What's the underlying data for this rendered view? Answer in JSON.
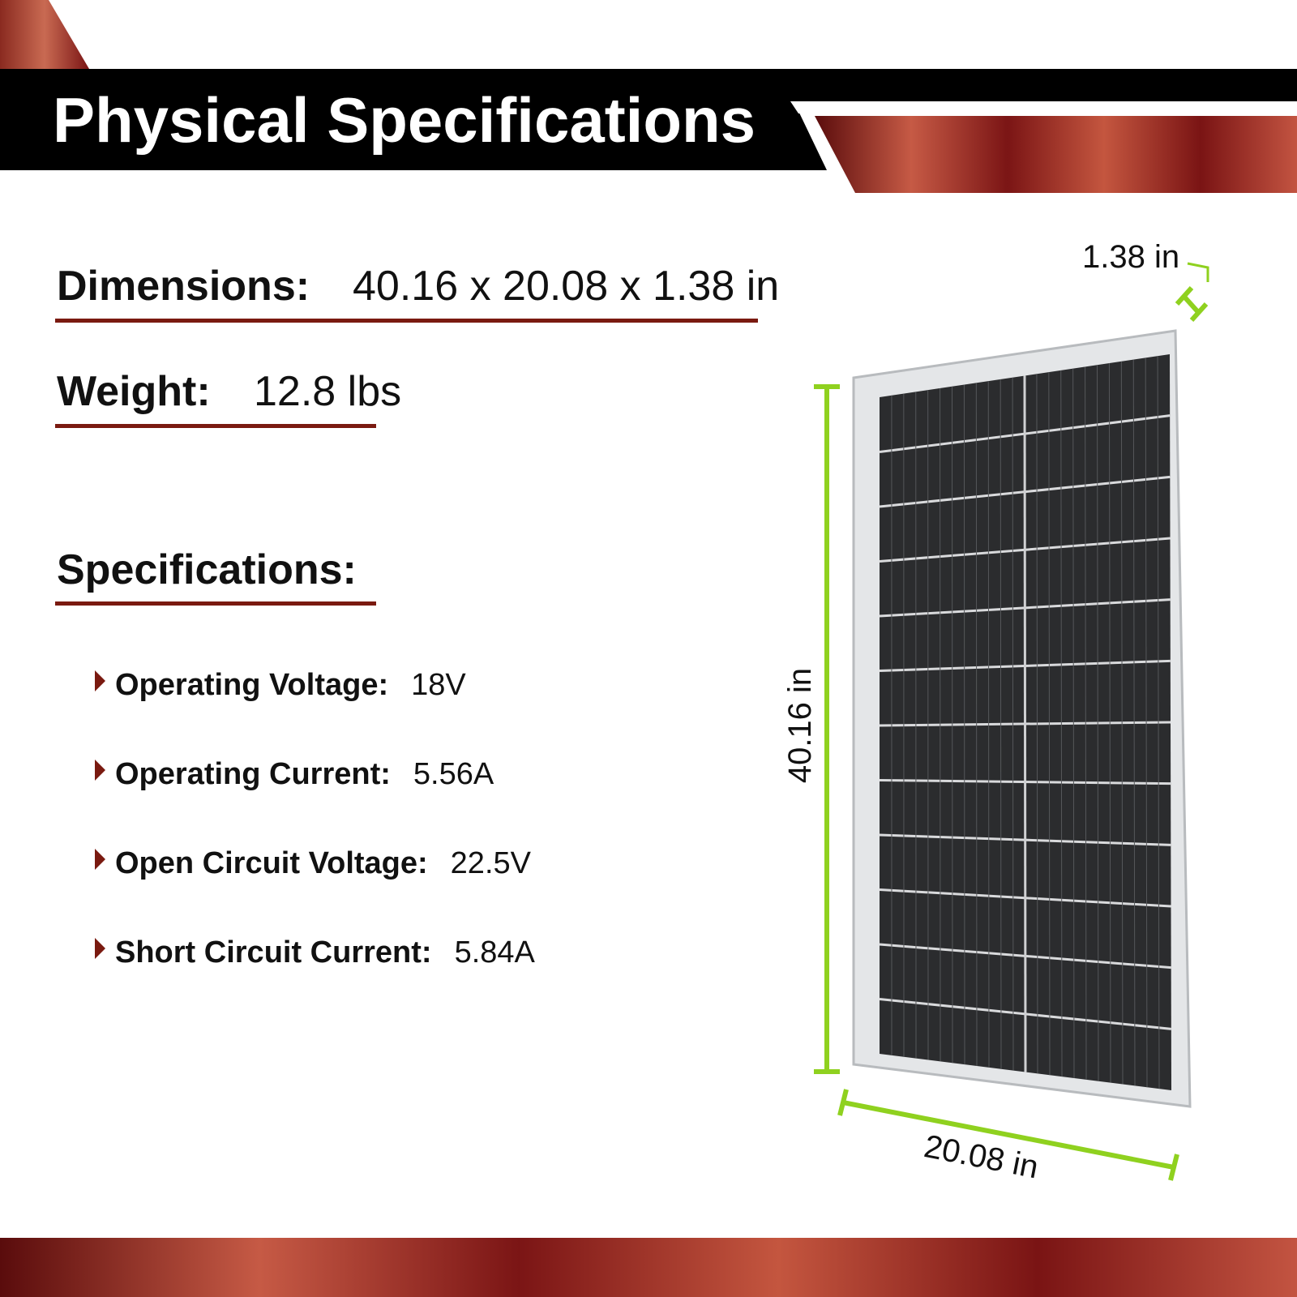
{
  "header": {
    "title": "Physical Specifications"
  },
  "dimensions": {
    "label": "Dimensions:",
    "value": "40.16 x 20.08 x 1.38 in"
  },
  "weight": {
    "label": "Weight:",
    "value": "12.8 lbs"
  },
  "specifications": {
    "title": "Specifications:",
    "items": [
      {
        "label": "Operating Voltage:",
        "value": "18V"
      },
      {
        "label": "Operating Current:",
        "value": "5.56A"
      },
      {
        "label": "Open Circuit Voltage:",
        "value": "22.5V"
      },
      {
        "label": "Short Circuit Current:",
        "value": "5.84A"
      }
    ]
  },
  "diagram": {
    "depth": "1.38 in",
    "height": "40.16 in",
    "width": "20.08 in"
  }
}
